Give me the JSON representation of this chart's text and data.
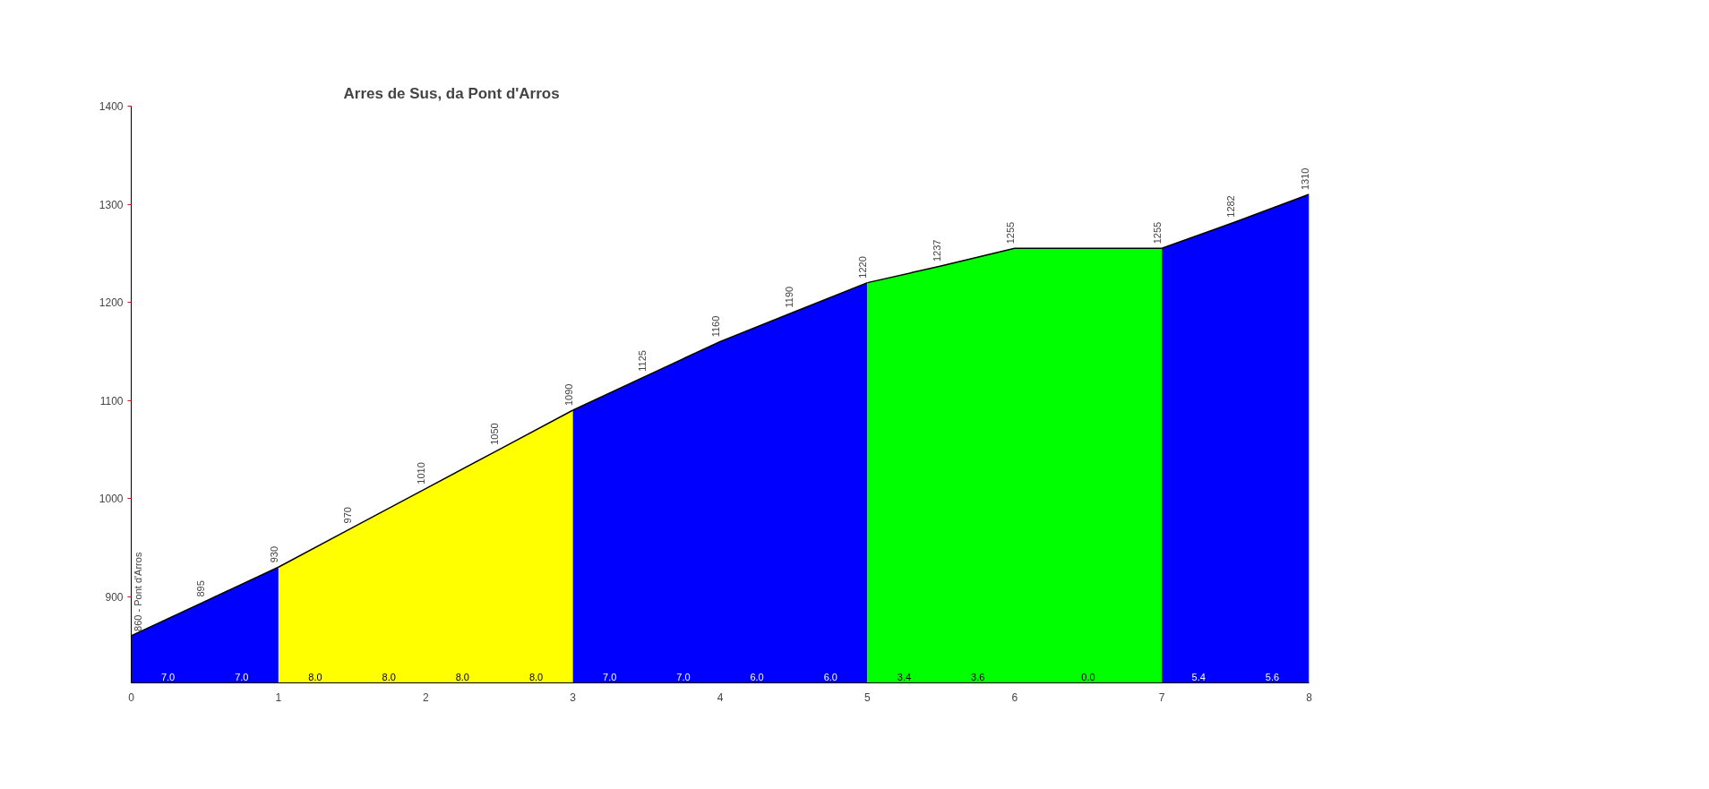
{
  "chart_data": {
    "type": "area",
    "title": "Arres de Sus, da Pont d'Arros",
    "series": [
      {
        "color": "#0000ff",
        "x": [
          0,
          0.5,
          1
        ],
        "values": [
          860,
          895,
          930
        ],
        "value_labels": [
          "860 - Pont d'Arros",
          "895",
          "930"
        ]
      },
      {
        "color": "#ffff00",
        "x": [
          1,
          1.5,
          2,
          2.5,
          3
        ],
        "values": [
          930,
          970,
          1010,
          1050,
          1090
        ],
        "value_labels": [
          null,
          "970",
          "1010",
          "1050",
          "1090"
        ]
      },
      {
        "color": "#0000ff",
        "x": [
          3,
          3.5,
          4,
          4.5,
          5
        ],
        "values": [
          1090,
          1125,
          1160,
          1190,
          1220
        ],
        "value_labels": [
          null,
          "1125",
          "1160",
          "1190",
          "1220"
        ]
      },
      {
        "color": "#00ff00",
        "x": [
          5,
          5.5,
          6,
          7
        ],
        "values": [
          1220,
          1237,
          1255,
          1255
        ],
        "value_labels": [
          null,
          "1237",
          "1255",
          "1255"
        ]
      },
      {
        "color": "#0000ff",
        "x": [
          7,
          7.5,
          8
        ],
        "values": [
          1255,
          1282,
          1310
        ],
        "value_labels": [
          null,
          "1282",
          "1310"
        ]
      }
    ],
    "annotations": [
      "7.0",
      "7.0",
      "8.0",
      "8.0",
      "8.0",
      "8.0",
      "7.0",
      "7.0",
      "6.0",
      "6.0",
      "3.4",
      "3.6",
      "0.0",
      "5.4",
      "5.6"
    ],
    "xlim": [
      0,
      8
    ],
    "xticks": [
      0,
      1,
      2,
      3,
      4,
      5,
      6,
      7,
      8
    ],
    "ylim": [
      812,
      1400
    ],
    "yticks": [
      900,
      1000,
      1100,
      1200,
      1300,
      1400
    ],
    "grid": false
  }
}
